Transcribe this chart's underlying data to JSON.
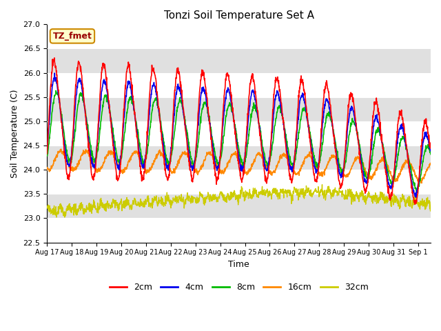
{
  "title": "Tonzi Soil Temperature Set A",
  "xlabel": "Time",
  "ylabel": "Soil Temperature (C)",
  "ylim": [
    22.5,
    27.0
  ],
  "xlim_start": 0,
  "xlim_end": 15.5,
  "x_tick_labels": [
    "Aug 17",
    "Aug 18",
    "Aug 19",
    "Aug 20",
    "Aug 21",
    "Aug 22",
    "Aug 23",
    "Aug 24",
    "Aug 25",
    "Aug 26",
    "Aug 27",
    "Aug 28",
    "Aug 29",
    "Aug 30",
    "Aug 31",
    "Sep 1"
  ],
  "colors": {
    "2cm": "#ff0000",
    "4cm": "#0000ee",
    "8cm": "#00bb00",
    "16cm": "#ff8800",
    "32cm": "#cccc00"
  },
  "plot_bg_color": "#e8e8e8",
  "band_colors": [
    "#ffffff",
    "#e0e0e0"
  ],
  "annotation_text": "TZ_fmet",
  "annotation_bg": "#ffffcc",
  "annotation_border": "#cc8800",
  "title_fontsize": 11,
  "axis_fontsize": 9,
  "tick_fontsize": 8,
  "legend_labels": [
    "2cm",
    "4cm",
    "8cm",
    "16cm",
    "32cm"
  ]
}
